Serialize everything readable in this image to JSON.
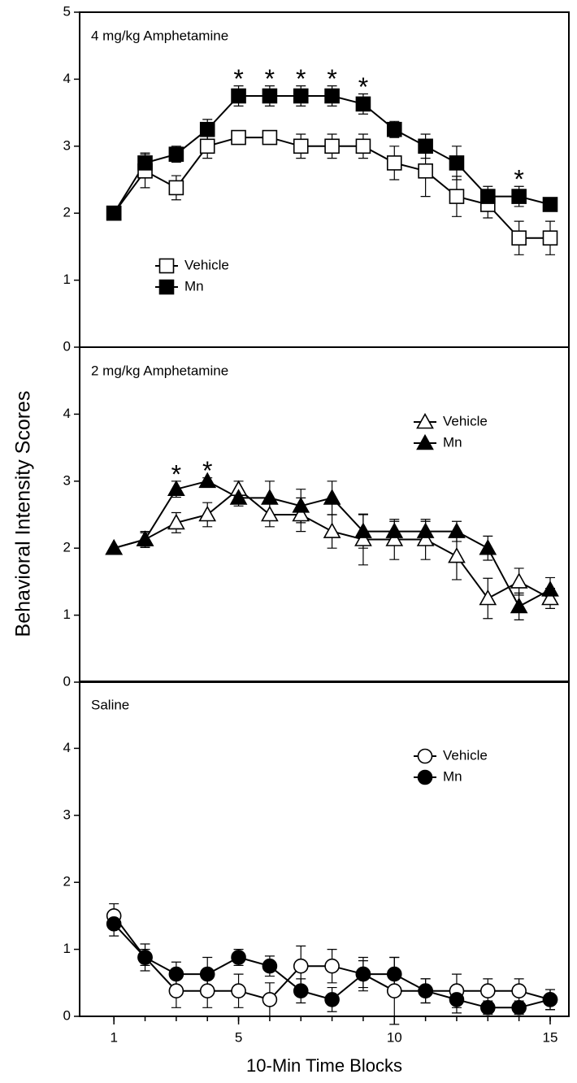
{
  "chart_data": [
    {
      "type": "line",
      "title": "4 mg/kg Amphetamine",
      "ylabel": "Behavioral Intensity Scores",
      "x": [
        1,
        2,
        3,
        4,
        5,
        6,
        7,
        8,
        9,
        10,
        11,
        12,
        13,
        14,
        15
      ],
      "xlim": [
        -0.1,
        15.6
      ],
      "xticks": [
        1,
        5,
        10,
        15
      ],
      "xticks_minor": [
        1,
        2,
        3,
        4,
        5,
        6,
        7,
        8,
        9,
        10,
        11,
        12,
        13,
        14,
        15
      ],
      "ylim": [
        0,
        5
      ],
      "yticks": [
        0,
        1,
        2,
        3,
        4,
        5
      ],
      "legend": "center left",
      "series": [
        {
          "name": "Vehicle",
          "color": "#000000",
          "marker": "square",
          "marker_fill": "#ffffff",
          "values": [
            2,
            2.63,
            2.38,
            3,
            3.13,
            3.13,
            3,
            3,
            3,
            2.75,
            2.63,
            2.25,
            2.13,
            1.63,
            1.63
          ],
          "errors": [
            0,
            0.25,
            0.18,
            0.18,
            0.1,
            0.1,
            0.18,
            0.18,
            0.18,
            0.25,
            0.38,
            0.3,
            0.2,
            0.25,
            0.25
          ]
        },
        {
          "name": "Mn",
          "color": "#000000",
          "marker": "square",
          "marker_fill": "#000000",
          "values": [
            2,
            2.75,
            2.88,
            3.25,
            3.75,
            3.75,
            3.75,
            3.75,
            3.63,
            3.25,
            3,
            2.75,
            2.25,
            2.25,
            2.13
          ],
          "errors": [
            0,
            0.15,
            0.12,
            0.15,
            0.15,
            0.15,
            0.15,
            0.15,
            0.15,
            0.12,
            0.18,
            0.25,
            0.15,
            0.15,
            0.1
          ]
        }
      ],
      "annotations": [
        {
          "text": "*",
          "x": 5
        },
        {
          "text": "*",
          "x": 6
        },
        {
          "text": "*",
          "x": 7
        },
        {
          "text": "*",
          "x": 8
        },
        {
          "text": "*",
          "x": 9
        },
        {
          "text": "*",
          "x": 14
        }
      ]
    },
    {
      "type": "line",
      "title": "2 mg/kg Amphetamine",
      "x": [
        1,
        2,
        3,
        4,
        5,
        6,
        7,
        8,
        9,
        10,
        11,
        12,
        13,
        14,
        15
      ],
      "xlim": [
        -0.1,
        15.6
      ],
      "xticks": [
        1,
        5,
        10,
        15
      ],
      "xticks_minor": [
        1,
        2,
        3,
        4,
        5,
        6,
        7,
        8,
        9,
        10,
        11,
        12,
        13,
        14,
        15
      ],
      "ylim": [
        0,
        5
      ],
      "yticks": [
        0,
        1,
        2,
        3,
        4
      ],
      "legend": "upper right",
      "series": [
        {
          "name": "Vehicle",
          "color": "#000000",
          "marker": "triangle",
          "marker_fill": "#ffffff",
          "values": [
            2,
            2.13,
            2.38,
            2.5,
            2.88,
            2.5,
            2.5,
            2.25,
            2.13,
            2.13,
            2.13,
            1.88,
            1.25,
            1.5,
            1.25
          ],
          "errors": [
            0,
            0.1,
            0.15,
            0.18,
            0.12,
            0.18,
            0.25,
            0.25,
            0.38,
            0.3,
            0.3,
            0.35,
            0.3,
            0.2,
            0.15
          ]
        },
        {
          "name": "Mn",
          "color": "#000000",
          "marker": "triangle",
          "marker_fill": "#000000",
          "values": [
            2,
            2.13,
            2.88,
            3,
            2.75,
            2.75,
            2.63,
            2.75,
            2.25,
            2.25,
            2.25,
            2.25,
            2,
            1.13,
            1.38
          ],
          "errors": [
            0,
            0.12,
            0.12,
            0.05,
            0.12,
            0.25,
            0.25,
            0.25,
            0.25,
            0.15,
            0.15,
            0.15,
            0.18,
            0.2,
            0.18
          ]
        }
      ],
      "annotations": [
        {
          "text": "*",
          "x": 3
        },
        {
          "text": "*",
          "x": 4
        }
      ]
    },
    {
      "type": "line",
      "title": "Saline",
      "xlabel": "10-Min Time Blocks",
      "x": [
        1,
        2,
        3,
        4,
        5,
        6,
        7,
        8,
        9,
        10,
        11,
        12,
        13,
        14,
        15
      ],
      "xlim": [
        -0.1,
        15.6
      ],
      "xticks": [
        1,
        5,
        10,
        15
      ],
      "xticks_minor": [
        1,
        2,
        3,
        4,
        5,
        6,
        7,
        8,
        9,
        10,
        11,
        12,
        13,
        14,
        15
      ],
      "ylim": [
        0,
        5
      ],
      "yticks": [
        0,
        1,
        2,
        3,
        4
      ],
      "legend": "upper right",
      "series": [
        {
          "name": "Vehicle",
          "color": "#000000",
          "marker": "circle",
          "marker_fill": "#ffffff",
          "values": [
            1.5,
            0.88,
            0.38,
            0.38,
            0.38,
            0.25,
            0.75,
            0.75,
            0.63,
            0.38,
            0.38,
            0.38,
            0.38,
            0.38,
            0.25
          ],
          "errors": [
            0.18,
            0.12,
            0.25,
            0.25,
            0.25,
            0.25,
            0.3,
            0.25,
            0.2,
            0.5,
            0.18,
            0.25,
            0.18,
            0.18,
            0.15
          ]
        },
        {
          "name": "Mn",
          "color": "#000000",
          "marker": "circle",
          "marker_fill": "#000000",
          "values": [
            1.38,
            0.88,
            0.63,
            0.63,
            0.88,
            0.75,
            0.38,
            0.25,
            0.63,
            0.63,
            0.38,
            0.25,
            0.13,
            0.13,
            0.25
          ],
          "errors": [
            0.18,
            0.2,
            0.18,
            0.25,
            0.12,
            0.15,
            0.18,
            0.18,
            0.25,
            0.25,
            0.18,
            0.2,
            0.1,
            0.1,
            0.15
          ]
        }
      ]
    }
  ]
}
